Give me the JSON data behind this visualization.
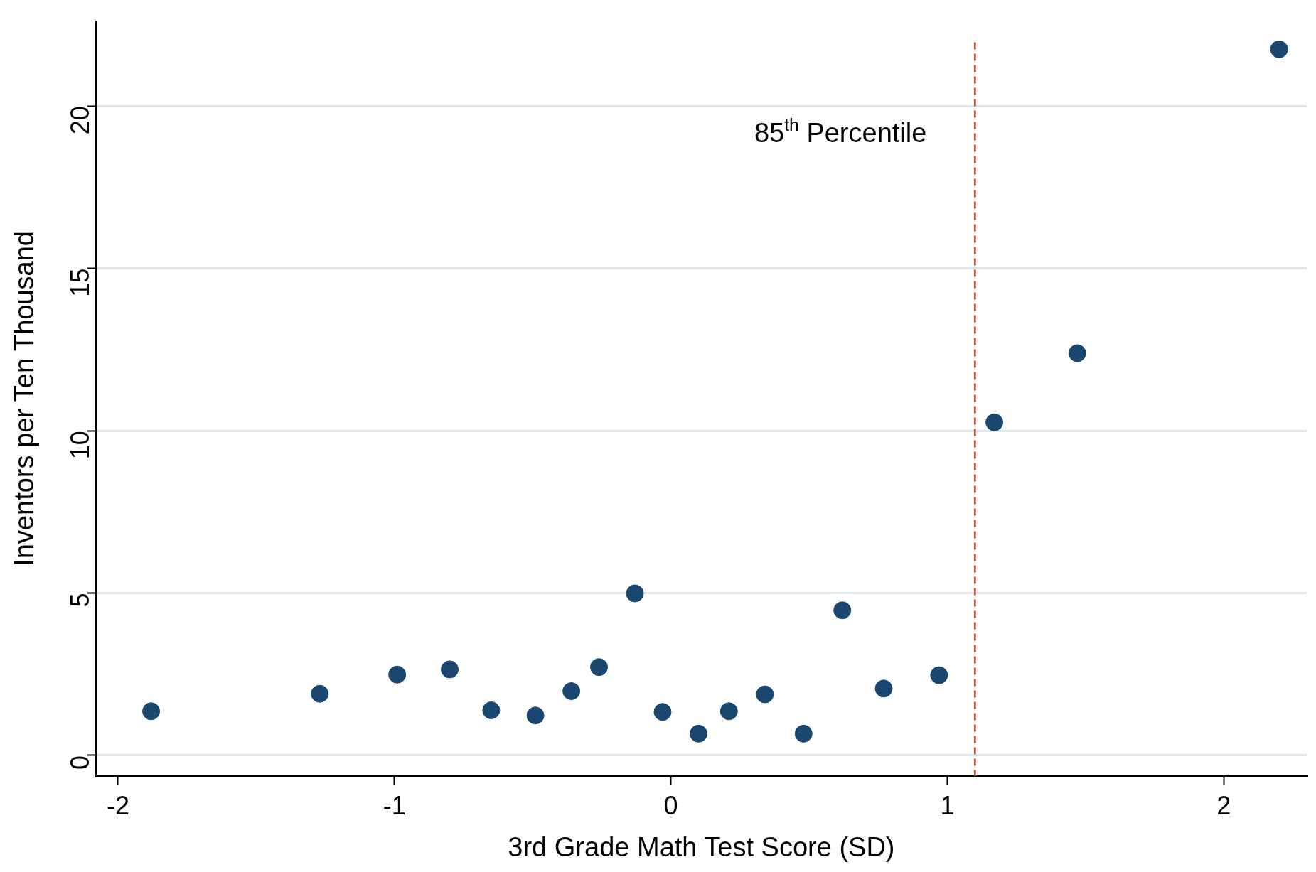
{
  "chart_data": {
    "type": "scatter",
    "xlabel": "3rd Grade Math Test Score (SD)",
    "ylabel": "Inventors per Ten Thousand",
    "x": [
      -1.88,
      -1.27,
      -0.99,
      -0.8,
      -0.65,
      -0.49,
      -0.36,
      -0.26,
      -0.13,
      -0.03,
      0.1,
      0.21,
      0.34,
      0.48,
      0.62,
      0.77,
      0.97,
      1.17,
      1.47,
      2.2
    ],
    "values": [
      1.36,
      1.9,
      2.49,
      2.65,
      1.39,
      1.23,
      1.98,
      2.72,
      4.99,
      1.34,
      0.67,
      1.36,
      1.88,
      0.67,
      4.47,
      2.06,
      2.47,
      10.26,
      12.39,
      21.75
    ],
    "color": "#1a476f",
    "marker": "circle",
    "xlim": [
      -2.08,
      2.3
    ],
    "xticks": [
      -2,
      -1,
      0,
      1,
      2
    ],
    "ylim": [
      -0.64,
      22.62
    ],
    "yticks": [
      0,
      5,
      10,
      15,
      20
    ],
    "grid": "y",
    "ref_lines": [
      {
        "axis": "x",
        "value": 1.1,
        "label": "85$^{th}$ Percentile",
        "color": "#c0392b",
        "line_style": "dashed"
      }
    ]
  }
}
